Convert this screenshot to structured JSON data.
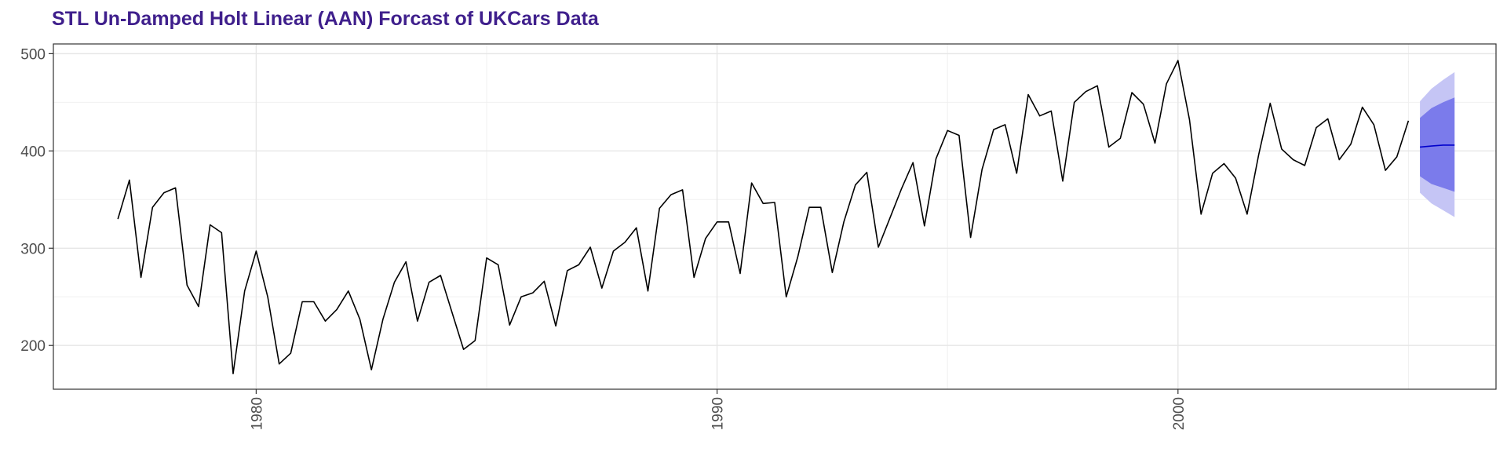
{
  "chart_data": {
    "type": "line",
    "title": "STL Un-Damped Holt Linear (AAN) Forcast of UKCars Data",
    "title_color": "#3F1F8C",
    "xlabel": "",
    "ylabel": "",
    "xlim": [
      1975.6,
      2006.9
    ],
    "ylim": [
      155,
      510
    ],
    "x_ticks": [
      1980,
      1990,
      2000
    ],
    "x_tick_labels": [
      "1980",
      "1990",
      "2000"
    ],
    "y_ticks": [
      200,
      300,
      400,
      500
    ],
    "y_tick_labels": [
      "200",
      "300",
      "400",
      "500"
    ],
    "grid": true,
    "legend": "none",
    "series": [
      {
        "color": "#000000",
        "start": 1977.0,
        "step": 0.25,
        "values": [
          330,
          370,
          270,
          342,
          357,
          362,
          262,
          240,
          324,
          316,
          171,
          256,
          297,
          250,
          181,
          192,
          245,
          245,
          225,
          237,
          256,
          227,
          175,
          227,
          265,
          286,
          225,
          265,
          272,
          234,
          196,
          205,
          290,
          283,
          221,
          250,
          254,
          266,
          220,
          277,
          283,
          301,
          259,
          297,
          306,
          321,
          256,
          341,
          355,
          360,
          270,
          310,
          327,
          327,
          274,
          367,
          346,
          347,
          250,
          291,
          342,
          342,
          275,
          327,
          365,
          378,
          301,
          331,
          361,
          388,
          323,
          392,
          421,
          416,
          311,
          381,
          422,
          427,
          377,
          458,
          436,
          441,
          369,
          450,
          461,
          467,
          404,
          413,
          460,
          448,
          408,
          469,
          493,
          432,
          335,
          377,
          387,
          372,
          335,
          396,
          449,
          402,
          391,
          385,
          424,
          433,
          391,
          407,
          445,
          427,
          380,
          394,
          431
        ]
      }
    ],
    "forecast": {
      "line_color": "#0000CC",
      "band80_color": "#7B7BEB",
      "band95_color": "#C5C5F5",
      "x": [
        2005.25,
        2005.5,
        2005.75,
        2006.0
      ],
      "mean": [
        404,
        405,
        406,
        406
      ],
      "lo80": [
        374,
        366,
        362,
        358
      ],
      "hi80": [
        434,
        444,
        450,
        455
      ],
      "lo95": [
        357,
        346,
        339,
        332
      ],
      "hi95": [
        451,
        464,
        473,
        481
      ]
    }
  }
}
